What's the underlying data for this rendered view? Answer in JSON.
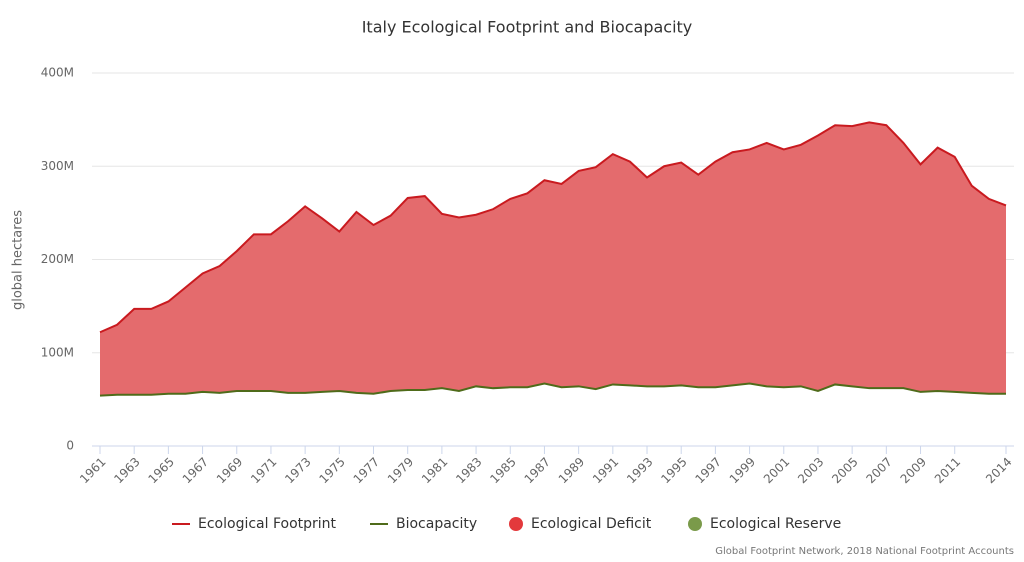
{
  "chart_data": {
    "type": "area-lines",
    "title": "Italy Ecological Footprint and Biocapacity",
    "y_label": "global hectares",
    "credit": "Global Footprint Network, 2018 National Footprint Accounts",
    "x": [
      1961,
      1962,
      1963,
      1964,
      1965,
      1966,
      1967,
      1968,
      1969,
      1970,
      1971,
      1972,
      1973,
      1974,
      1975,
      1976,
      1977,
      1978,
      1979,
      1980,
      1981,
      1982,
      1983,
      1984,
      1985,
      1986,
      1987,
      1988,
      1989,
      1990,
      1991,
      1992,
      1993,
      1994,
      1995,
      1996,
      1997,
      1998,
      1999,
      2000,
      2001,
      2002,
      2003,
      2004,
      2005,
      2006,
      2007,
      2008,
      2009,
      2010,
      2011,
      2012,
      2013,
      2014
    ],
    "xlim": [
      1961,
      2014
    ],
    "xticks": [
      1961,
      1963,
      1965,
      1967,
      1969,
      1971,
      1973,
      1975,
      1977,
      1979,
      1981,
      1983,
      1985,
      1987,
      1989,
      1991,
      1993,
      1995,
      1997,
      1999,
      2001,
      2003,
      2005,
      2007,
      2009,
      2011,
      2014
    ],
    "ylim": [
      0,
      400000000.0
    ],
    "yticks": [
      0,
      {
        "value": 100000000.0,
        "label": "100M"
      },
      {
        "value": 200000000.0,
        "label": "200M"
      },
      {
        "value": 300000000.0,
        "label": "300M"
      },
      {
        "value": 400000000.0,
        "label": "400M"
      }
    ],
    "grid": true,
    "series": [
      {
        "name": "Ecological Footprint",
        "color": "#c91a1f",
        "values": [
          122000000.0,
          130000000.0,
          147000000.0,
          147000000.0,
          155000000.0,
          170000000.0,
          185000000.0,
          193000000.0,
          209000000.0,
          227000000.0,
          227000000.0,
          241000000.0,
          257000000.0,
          244000000.0,
          230000000.0,
          251000000.0,
          237000000.0,
          247000000.0,
          266000000.0,
          268000000.0,
          249000000.0,
          245000000.0,
          248000000.0,
          254000000.0,
          265000000.0,
          271000000.0,
          285000000.0,
          281000000.0,
          295000000.0,
          299000000.0,
          313000000.0,
          305000000.0,
          288000000.0,
          300000000.0,
          304000000.0,
          291000000.0,
          305000000.0,
          315000000.0,
          318000000.0,
          325000000.0,
          318000000.0,
          323000000.0,
          333000000.0,
          344000000.0,
          343000000.0,
          347000000.0,
          344000000.0,
          325000000.0,
          302000000.0,
          320000000.0,
          310000000.0,
          279000000.0,
          265000000.0,
          258000000.0
        ]
      },
      {
        "name": "Biocapacity",
        "color": "#4f6b1a",
        "values": [
          54000000.0,
          55000000.0,
          55000000.0,
          55000000.0,
          56000000.0,
          56000000.0,
          58000000.0,
          57000000.0,
          59000000.0,
          59000000.0,
          59000000.0,
          57000000.0,
          57000000.0,
          58000000.0,
          59000000.0,
          57000000.0,
          56000000.0,
          59000000.0,
          60000000.0,
          60000000.0,
          62000000.0,
          59000000.0,
          64000000.0,
          62000000.0,
          63000000.0,
          63000000.0,
          67000000.0,
          63000000.0,
          64000000.0,
          61000000.0,
          66000000.0,
          65000000.0,
          64000000.0,
          64000000.0,
          65000000.0,
          63000000.0,
          63000000.0,
          65000000.0,
          67000000.0,
          64000000.0,
          63000000.0,
          64000000.0,
          59000000.0,
          66000000.0,
          64000000.0,
          62000000.0,
          62000000.0,
          62000000.0,
          58000000.0,
          59000000.0,
          58000000.0,
          57000000.0,
          56000000.0,
          56000000.0
        ]
      }
    ],
    "areas": [
      {
        "name": "Ecological Deficit",
        "color": "#e3393c",
        "fill": "#e46b6d"
      },
      {
        "name": "Ecological Reserve",
        "color": "#7a9a4a"
      }
    ]
  }
}
